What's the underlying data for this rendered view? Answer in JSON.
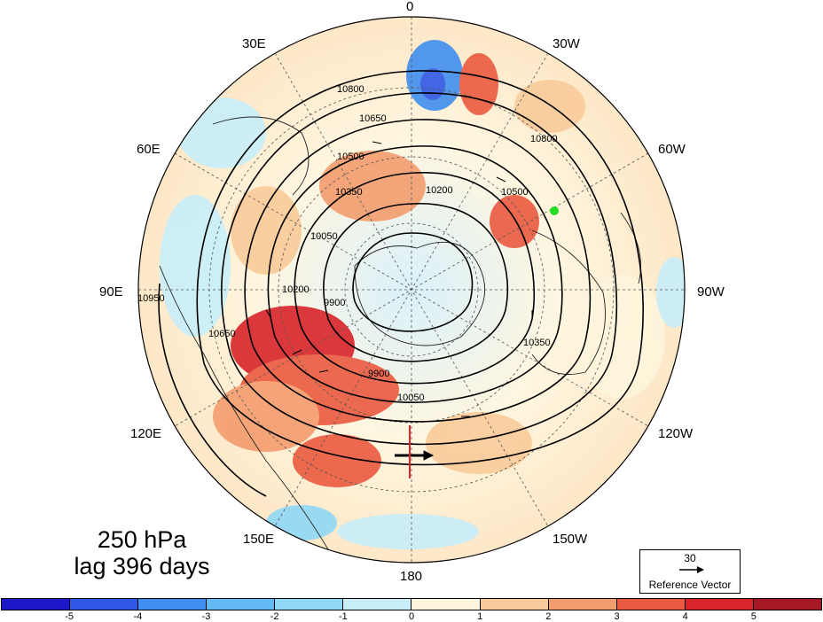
{
  "lon_labels": {
    "l0": "0",
    "l30w": "30W",
    "l60w": "60W",
    "l90w": "90W",
    "l120w": "120W",
    "l150w": "150W",
    "l180": "180",
    "l150e": "150E",
    "l120e": "120E",
    "l90e": "90E",
    "l60e": "60E",
    "l30e": "30E"
  },
  "title": {
    "line1": "250 hPa",
    "line2": "lag 396 days"
  },
  "reference_vector": {
    "value": "30",
    "caption": "Reference Vector"
  },
  "contours": {
    "labels": [
      "10800",
      "10650",
      "10500",
      "10350",
      "10200",
      "10050",
      "9900",
      "10950",
      "10650",
      "10800",
      "10500",
      "10350",
      "10200",
      "10050",
      "9900"
    ]
  },
  "colorbar": {
    "colors": [
      "#1d18c8",
      "#2f58e6",
      "#3f8ef0",
      "#63b9f4",
      "#8fd8f7",
      "#c8eef9",
      "#fdf5dc",
      "#f9cb9a",
      "#f39c6e",
      "#ea5a40",
      "#d8242a",
      "#a71826"
    ],
    "tick_labels": [
      "-5",
      "-4",
      "-3",
      "-2",
      "-1",
      "0",
      "1",
      "2",
      "3",
      "4",
      "5"
    ]
  },
  "marker": {
    "color": "#22dd22"
  }
}
